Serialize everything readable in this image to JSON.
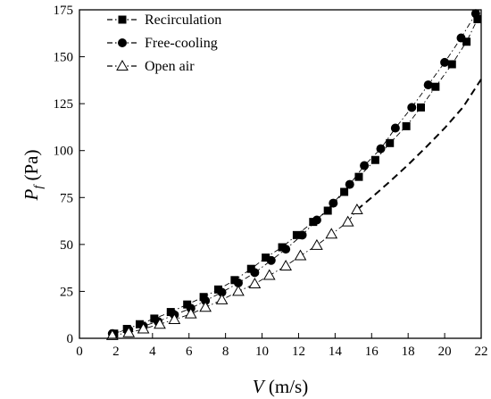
{
  "chart_data": {
    "type": "scatter",
    "xlabel": "V (m/s)",
    "xlabel_var": "V",
    "xlabel_unit": " (m/s)",
    "ylabel": "Pf (Pa)",
    "ylabel_var": "P",
    "ylabel_sub": "f",
    "ylabel_unit": " (Pa)",
    "xlim": [
      0,
      22
    ],
    "ylim": [
      0,
      175
    ],
    "xticks": [
      0,
      2,
      4,
      6,
      8,
      10,
      12,
      14,
      16,
      18,
      20,
      22
    ],
    "yticks": [
      0,
      25,
      50,
      75,
      100,
      125,
      150,
      175
    ],
    "legend_position": "top-left",
    "grid": false,
    "series": [
      {
        "name": "Recirculation",
        "marker": "square",
        "line": "dash-dot",
        "x": [
          1.9,
          2.6,
          3.3,
          4.1,
          5.0,
          5.9,
          6.8,
          7.6,
          8.5,
          9.4,
          10.2,
          11.1,
          11.9,
          12.8,
          13.6,
          14.5,
          15.3,
          16.2,
          17.0,
          17.9,
          18.7,
          19.5,
          20.4,
          21.2,
          21.8
        ],
        "y": [
          2.5,
          5,
          7.5,
          10.5,
          14,
          18,
          22,
          26,
          31,
          37,
          43,
          48.5,
          55,
          62,
          68,
          78,
          86,
          95,
          104,
          113,
          123,
          134,
          146,
          158,
          170
        ]
      },
      {
        "name": "Free-cooling",
        "marker": "circle",
        "line": "dash-dot",
        "x": [
          1.8,
          2.7,
          3.5,
          4.3,
          5.2,
          6.1,
          6.9,
          7.8,
          8.7,
          9.6,
          10.5,
          11.3,
          12.2,
          13.0,
          13.9,
          14.8,
          15.6,
          16.5,
          17.3,
          18.2,
          19.1,
          20.0,
          20.9,
          21.7
        ],
        "y": [
          2.5,
          4.5,
          6.5,
          9,
          12.5,
          16,
          20,
          24.5,
          29.5,
          35,
          41.5,
          47.5,
          55,
          63,
          72,
          82,
          92,
          101,
          112,
          123,
          135,
          147,
          160,
          173
        ]
      },
      {
        "name": "Open air",
        "marker": "triangle-open",
        "line": "dash-dot",
        "x": [
          1.8,
          2.7,
          3.5,
          4.4,
          5.2,
          6.1,
          6.9,
          7.8,
          8.7,
          9.6,
          10.4,
          11.3,
          12.1,
          13.0,
          13.8,
          14.7,
          15.2
        ],
        "y": [
          1.5,
          3,
          5,
          7.5,
          10,
          13,
          16.5,
          20.5,
          25,
          29,
          33.5,
          38.5,
          44,
          49.5,
          55.5,
          62,
          68.5
        ]
      },
      {
        "name": "",
        "marker": "none",
        "line": "dashed",
        "x": [
          15.2,
          16.0,
          17.0,
          18.0,
          19.0,
          20.0,
          21.0,
          22.0
        ],
        "y": [
          68.5,
          75,
          83.5,
          92.5,
          102,
          112,
          123,
          138
        ]
      }
    ]
  }
}
